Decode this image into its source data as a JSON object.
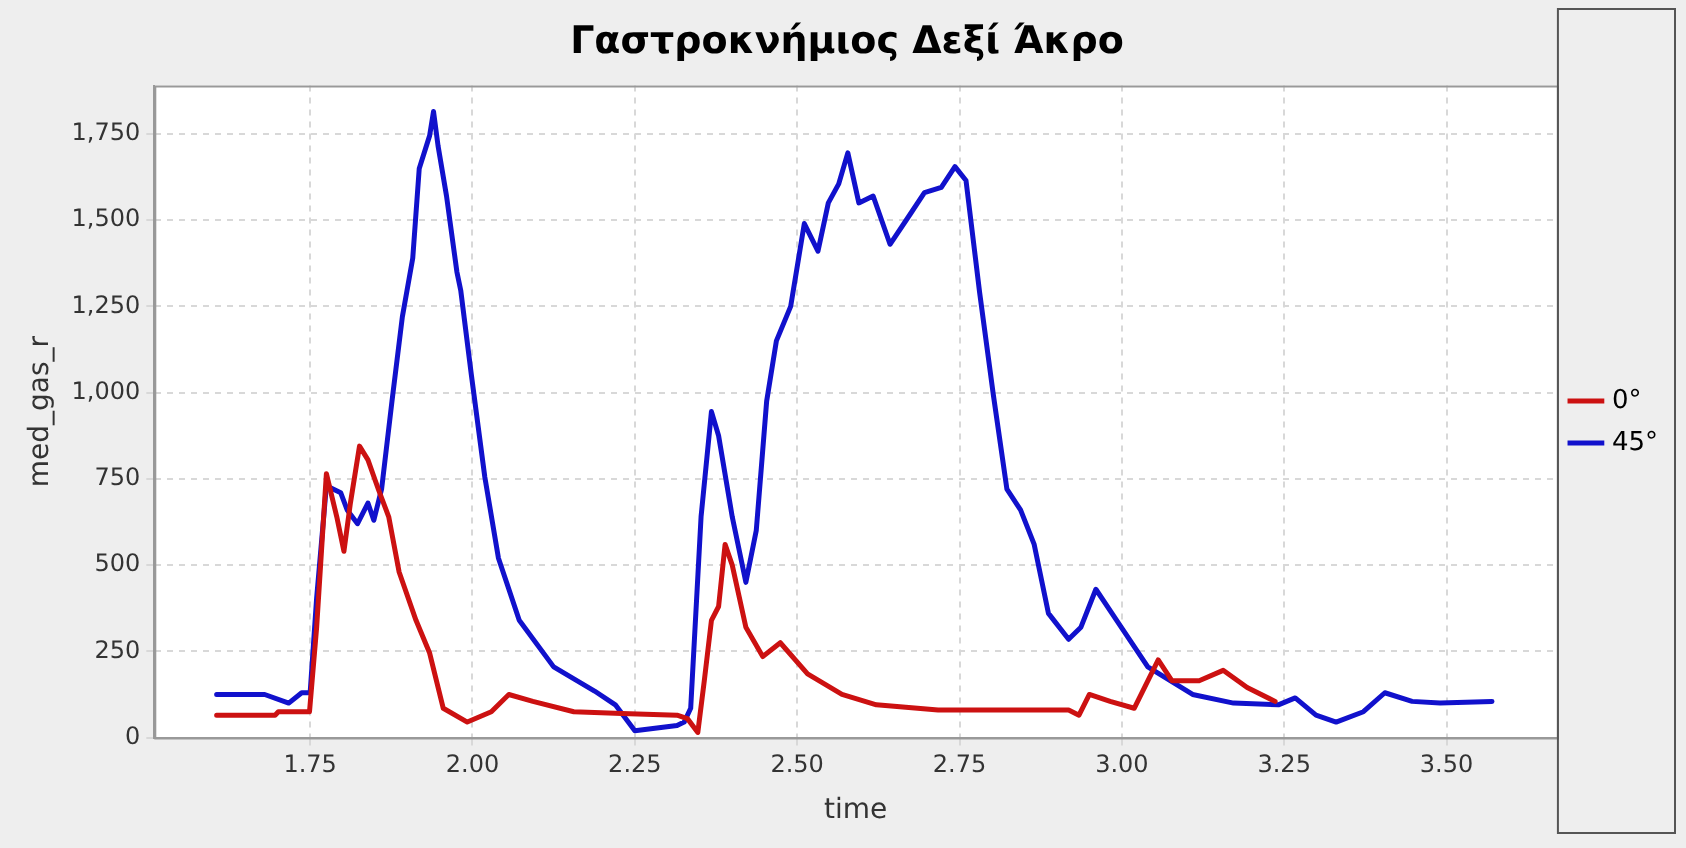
{
  "chart_data": {
    "type": "line",
    "title": "Γαστροκνήμιος Δεξί Άκρο",
    "xlabel": "time",
    "ylabel": "med_gas_r",
    "xlim": [
      1.51,
      3.67
    ],
    "xticks": [
      1.75,
      {
        "value": 2,
        "label": "2.00"
      },
      2.25,
      {
        "value": 2.5,
        "label": "2.50"
      },
      2.75,
      {
        "value": 3,
        "label": "3.00"
      },
      3.25,
      {
        "value": 3.5,
        "label": "3.50"
      }
    ],
    "ylim": [
      0,
      1890
    ],
    "yticks": [
      0,
      250,
      500,
      750,
      {
        "value": 1000,
        "label": "1,000"
      },
      {
        "value": 1250,
        "label": "1,250"
      },
      {
        "value": 1500,
        "label": "1,500"
      },
      {
        "value": 1750,
        "label": "1,750"
      }
    ],
    "grid": true,
    "legend": "right",
    "marker": "none",
    "line_style": "solid",
    "series": [
      {
        "name": "0°",
        "color": "#cc1111",
        "x": [
          1.606,
          1.696,
          1.701,
          1.749,
          1.76,
          1.775,
          1.791,
          1.802,
          1.812,
          1.826,
          1.839,
          1.855,
          1.871,
          1.887,
          1.913,
          1.934,
          1.955,
          1.992,
          2.029,
          2.056,
          2.093,
          2.156,
          2.23,
          2.315,
          2.331,
          2.347,
          2.357,
          2.368,
          2.379,
          2.389,
          2.4,
          2.421,
          2.447,
          2.474,
          2.516,
          2.569,
          2.622,
          2.717,
          2.918,
          2.934,
          2.95,
          2.982,
          3.019,
          3.056,
          3.077,
          3.119,
          3.156,
          3.193,
          3.236
        ],
        "values": [
          65,
          65,
          75,
          75,
          320,
          765,
          640,
          540,
          680,
          845,
          805,
          720,
          640,
          480,
          340,
          245,
          85,
          45,
          75,
          125,
          105,
          75,
          70,
          65,
          55,
          15,
          165,
          340,
          380,
          560,
          500,
          320,
          235,
          275,
          185,
          125,
          95,
          80,
          80,
          65,
          125,
          105,
          85,
          225,
          165,
          165,
          195,
          145,
          105
        ]
      },
      {
        "name": "45°",
        "color": "#1111cc",
        "x": [
          1.606,
          1.68,
          1.717,
          1.737,
          1.75,
          1.76,
          1.775,
          1.797,
          1.807,
          1.823,
          1.839,
          1.848,
          1.86,
          1.876,
          1.892,
          1.908,
          1.918,
          1.934,
          1.94,
          1.947,
          1.96,
          1.976,
          1.982,
          1.998,
          2.019,
          2.04,
          2.072,
          2.125,
          2.188,
          2.22,
          2.25,
          2.315,
          2.326,
          2.336,
          2.352,
          2.368,
          2.379,
          2.4,
          2.421,
          2.437,
          2.453,
          2.468,
          2.49,
          2.511,
          2.532,
          2.548,
          2.564,
          2.578,
          2.595,
          2.617,
          2.643,
          2.675,
          2.696,
          2.722,
          2.743,
          2.76,
          2.781,
          2.802,
          2.823,
          2.844,
          2.865,
          2.887,
          2.918,
          2.937,
          2.96,
          2.992,
          3.04,
          3.109,
          3.172,
          3.241,
          3.267,
          3.299,
          3.33,
          3.372,
          3.405,
          3.447,
          3.49,
          3.57
        ],
        "values": [
          125,
          125,
          100,
          130,
          130,
          405,
          730,
          710,
          660,
          620,
          680,
          630,
          720,
          975,
          1220,
          1390,
          1650,
          1745,
          1815,
          1715,
          1570,
          1350,
          1295,
          1055,
          755,
          520,
          340,
          205,
          135,
          95,
          20,
          35,
          45,
          85,
          640,
          945,
          875,
          640,
          450,
          600,
          975,
          1150,
          1250,
          1490,
          1410,
          1550,
          1605,
          1695,
          1550,
          1570,
          1430,
          1520,
          1580,
          1595,
          1655,
          1615,
          1290,
          995,
          720,
          660,
          560,
          360,
          285,
          320,
          430,
          340,
          205,
          125,
          100,
          95,
          115,
          65,
          45,
          75,
          130,
          105,
          100,
          105
        ]
      }
    ]
  }
}
